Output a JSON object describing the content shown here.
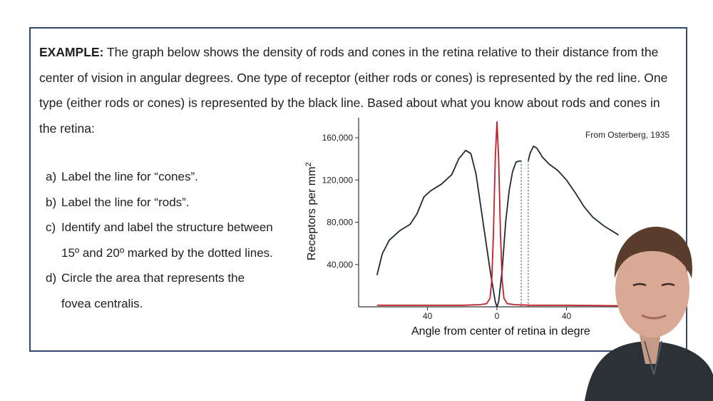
{
  "example": {
    "label": "EXAMPLE:",
    "text": " The graph below shows the density of rods and cones in the retina relative to their distance from the center of vision in angular degrees. One type of receptor (either rods or cones) is represented by the red line. One type (either rods or cones) is represented by the black line. Based about what you know about rods and cones in the retina:"
  },
  "questions": [
    {
      "label": "a)",
      "text": "Label the line for “cones”."
    },
    {
      "label": "b)",
      "text": "Label the line for “rods”."
    },
    {
      "label": "c)",
      "text": "Identify and label the structure between",
      "cont": "15º and 20º marked by the dotted lines."
    },
    {
      "label": "d)",
      "text": "Circle the area that represents the",
      "cont": "fovea centralis."
    }
  ],
  "chart_data": {
    "type": "line",
    "source_note": "From Osterberg, 1935",
    "xlabel": "Angle from center of retina in degre",
    "ylabel": "Receptors per mm",
    "ylabel_sup": "2",
    "xlim": [
      -70,
      70
    ],
    "ylim": [
      0,
      170000
    ],
    "x_ticks": [
      {
        "value": -40,
        "label": "40"
      },
      {
        "value": 0,
        "label": "0"
      },
      {
        "value": 40,
        "label": "40"
      }
    ],
    "y_ticks": [
      {
        "value": 40000,
        "label": "40,000"
      },
      {
        "value": 80000,
        "label": "80,000"
      },
      {
        "value": 120000,
        "label": "120,000"
      },
      {
        "value": 160000,
        "label": "160,000"
      }
    ],
    "dotted_lines_x": [
      14,
      18
    ],
    "series": [
      {
        "color": "#222a33",
        "segments": [
          [
            [
              -69,
              30000
            ],
            [
              -66,
              50000
            ],
            [
              -62,
              63000
            ],
            [
              -56,
              72000
            ],
            [
              -50,
              78000
            ],
            [
              -46,
              88000
            ],
            [
              -42,
              104000
            ],
            [
              -38,
              110000
            ],
            [
              -32,
              116000
            ],
            [
              -26,
              125000
            ],
            [
              -22,
              140000
            ],
            [
              -18,
              148000
            ],
            [
              -15,
              145000
            ],
            [
              -12,
              125000
            ],
            [
              -8,
              80000
            ],
            [
              -4,
              35000
            ],
            [
              -1,
              5000
            ],
            [
              0,
              0
            ],
            [
              1,
              5000
            ],
            [
              3,
              35000
            ],
            [
              5,
              80000
            ],
            [
              7,
              110000
            ],
            [
              9,
              128000
            ],
            [
              11,
              137000
            ],
            [
              13,
              138000
            ],
            [
              14,
              138000
            ]
          ],
          [
            [
              18,
              138000
            ],
            [
              19,
              145000
            ],
            [
              21,
              152000
            ],
            [
              23,
              150000
            ],
            [
              26,
              142000
            ],
            [
              30,
              135000
            ],
            [
              35,
              129000
            ],
            [
              40,
              120000
            ],
            [
              45,
              108000
            ],
            [
              50,
              95000
            ],
            [
              55,
              85000
            ],
            [
              62,
              76000
            ],
            [
              70,
              68000
            ]
          ]
        ]
      },
      {
        "color": "#c0202a",
        "segments": [
          [
            [
              -69,
              1500
            ],
            [
              -40,
              1500
            ],
            [
              -20,
              1500
            ],
            [
              -10,
              2000
            ],
            [
              -6,
              3000
            ],
            [
              -4,
              8000
            ],
            [
              -3,
              25000
            ],
            [
              -2,
              70000
            ],
            [
              -1,
              140000
            ],
            [
              0,
              175000
            ],
            [
              1,
              140000
            ],
            [
              2,
              70000
            ],
            [
              3,
              25000
            ],
            [
              4,
              8000
            ],
            [
              6,
              3000
            ],
            [
              10,
              2000
            ],
            [
              20,
              1500
            ],
            [
              40,
              1500
            ],
            [
              70,
              1000
            ]
          ]
        ]
      }
    ]
  }
}
